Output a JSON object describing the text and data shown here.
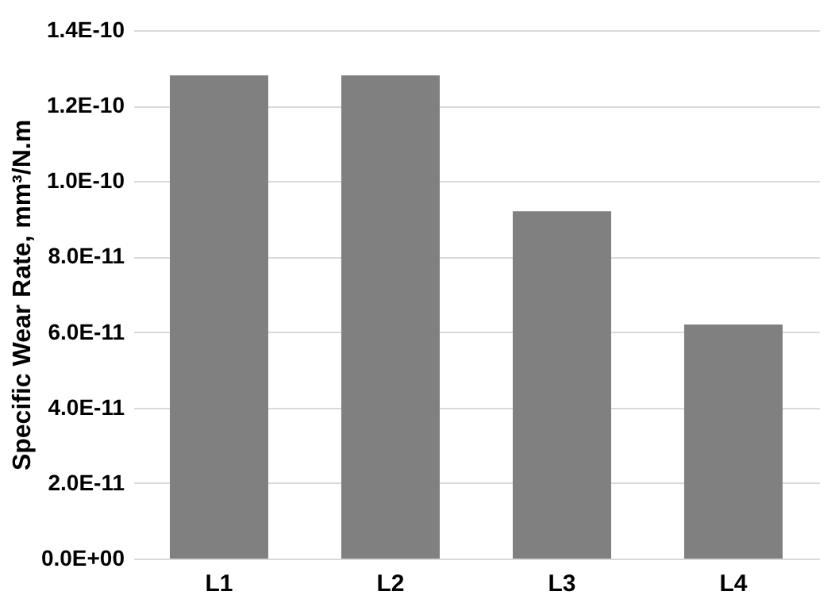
{
  "chart_data": {
    "type": "bar",
    "ylabel": "Specific Wear Rate, mm³/N.m",
    "categories": [
      "L1",
      "L2",
      "L3",
      "L4"
    ],
    "values": [
      1.28e-10,
      1.28e-10,
      9.2e-11,
      6.2e-11
    ],
    "color": "#808080",
    "ylim": [
      0,
      1.4e-10
    ],
    "yticks": [
      {
        "value": 0,
        "label": "0.0E+00"
      },
      {
        "value": 2e-11,
        "label": "2.0E-11"
      },
      {
        "value": 4e-11,
        "label": "4.0E-11"
      },
      {
        "value": 6e-11,
        "label": "6.0E-11"
      },
      {
        "value": 8e-11,
        "label": "8.0E-11"
      },
      {
        "value": 1e-10,
        "label": "1.0E-10"
      },
      {
        "value": 1.2e-10,
        "label": "1.2E-10"
      },
      {
        "value": 1.4e-10,
        "label": "1.4E-10"
      }
    ],
    "grid": "y"
  }
}
